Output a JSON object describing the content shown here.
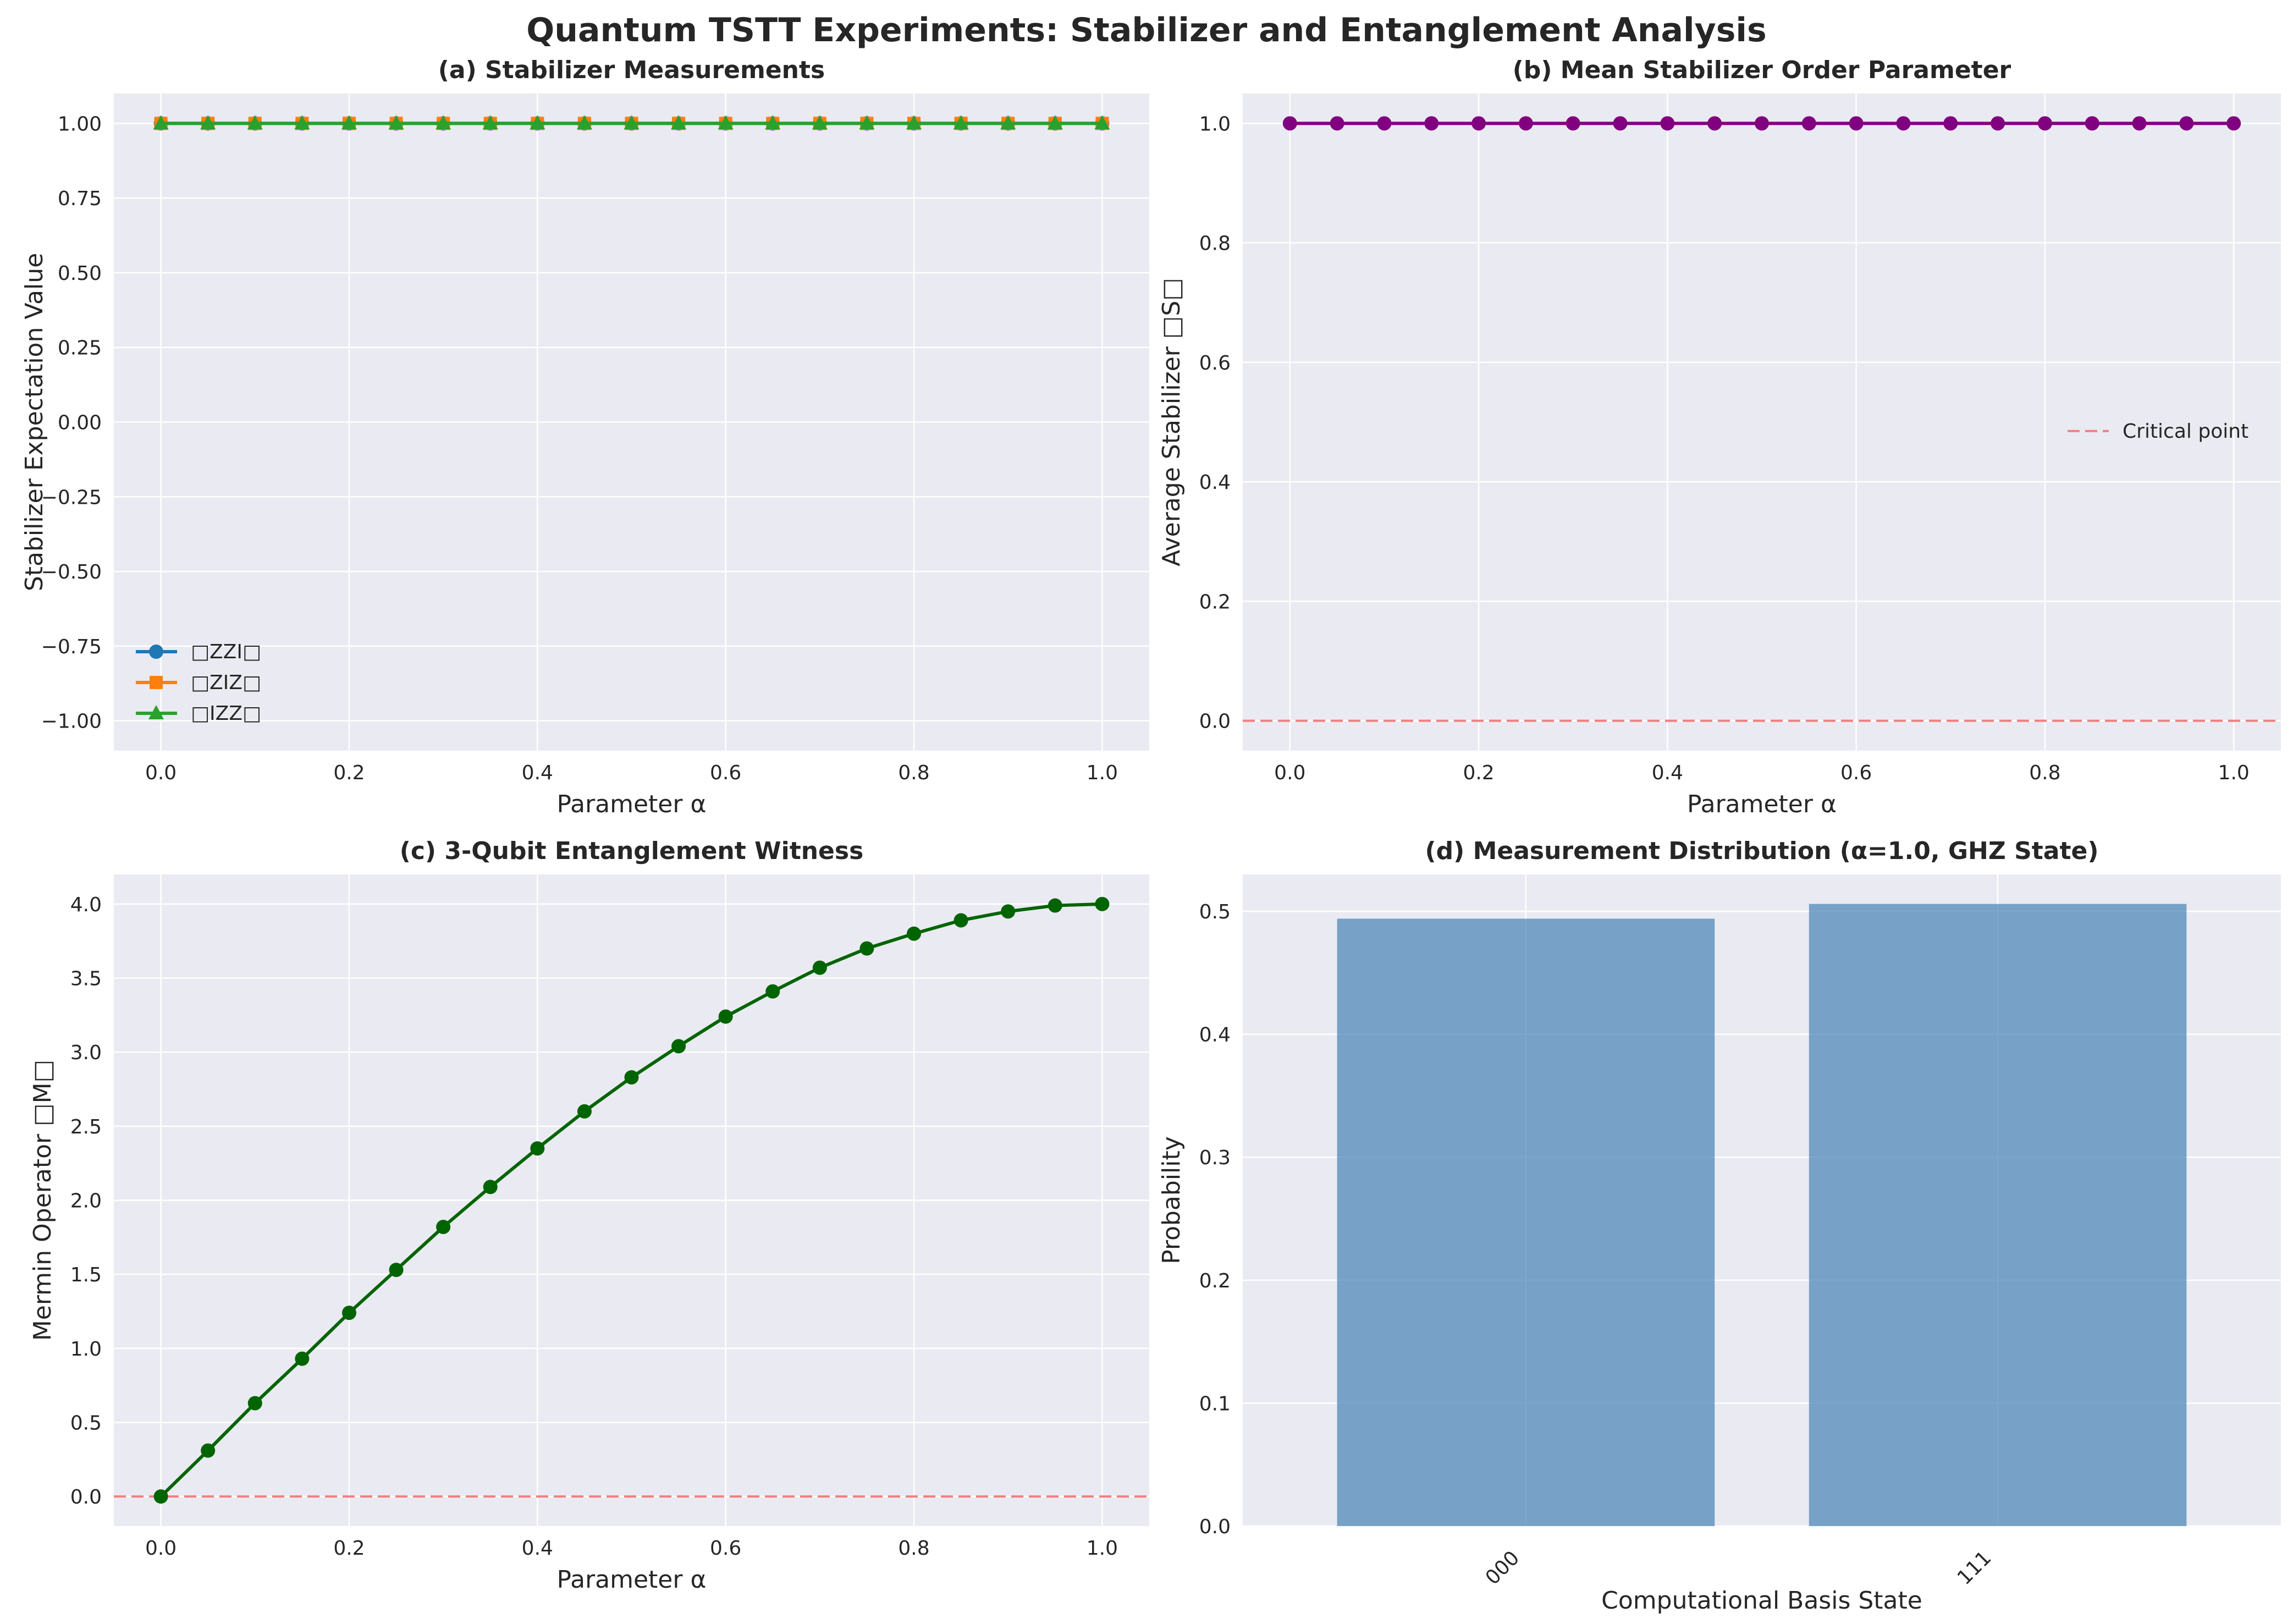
{
  "figure": {
    "title": "Quantum TSTT Experiments: Stabilizer and Entanglement Analysis",
    "background": "#ffffff",
    "axes_background": "#eaeaf2",
    "grid_color": "#ffffff"
  },
  "chart_data": [
    {
      "id": "a",
      "type": "line",
      "title": "(a) Stabilizer Measurements",
      "xlabel": "Parameter α",
      "ylabel": "Stabilizer Expectation Value",
      "xlim": [
        -0.05,
        1.05
      ],
      "ylim": [
        -1.1,
        1.1
      ],
      "xticks": [
        "0.0",
        "0.2",
        "0.4",
        "0.6",
        "0.8",
        "1.0"
      ],
      "yticks": [
        "−1.00",
        "−0.75",
        "−0.50",
        "−0.25",
        "0.00",
        "0.25",
        "0.50",
        "0.75",
        "1.00"
      ],
      "grid": true,
      "legend_position": "lower-left",
      "x": [
        0.0,
        0.05,
        0.1,
        0.15,
        0.2,
        0.25,
        0.3,
        0.35,
        0.4,
        0.45,
        0.5,
        0.55,
        0.6,
        0.65,
        0.7,
        0.75,
        0.8,
        0.85,
        0.9,
        0.95,
        1.0
      ],
      "series": [
        {
          "name": "□ZZI□",
          "color": "#1f77b4",
          "marker": "circle",
          "values": [
            1,
            1,
            1,
            1,
            1,
            1,
            1,
            1,
            1,
            1,
            1,
            1,
            1,
            1,
            1,
            1,
            1,
            1,
            1,
            1,
            1
          ]
        },
        {
          "name": "□ZIZ□",
          "color": "#ff7f0e",
          "marker": "square",
          "values": [
            1,
            1,
            1,
            1,
            1,
            1,
            1,
            1,
            1,
            1,
            1,
            1,
            1,
            1,
            1,
            1,
            1,
            1,
            1,
            1,
            1
          ]
        },
        {
          "name": "□IZZ□",
          "color": "#2ca02c",
          "marker": "triangle",
          "values": [
            1,
            1,
            1,
            1,
            1,
            1,
            1,
            1,
            1,
            1,
            1,
            1,
            1,
            1,
            1,
            1,
            1,
            1,
            1,
            1,
            1
          ]
        }
      ]
    },
    {
      "id": "b",
      "type": "line",
      "title": "(b) Mean Stabilizer Order Parameter",
      "xlabel": "Parameter α",
      "ylabel": "Average Stabilizer □S□",
      "xlim": [
        -0.05,
        1.05
      ],
      "ylim": [
        -0.05,
        1.05
      ],
      "xticks": [
        "0.0",
        "0.2",
        "0.4",
        "0.6",
        "0.8",
        "1.0"
      ],
      "yticks": [
        "0.0",
        "0.2",
        "0.4",
        "0.6",
        "0.8",
        "1.0"
      ],
      "grid": true,
      "legend_position": "center-right",
      "x": [
        0.0,
        0.05,
        0.1,
        0.15,
        0.2,
        0.25,
        0.3,
        0.35,
        0.4,
        0.45,
        0.5,
        0.55,
        0.6,
        0.65,
        0.7,
        0.75,
        0.8,
        0.85,
        0.9,
        0.95,
        1.0
      ],
      "series": [
        {
          "color": "#800080",
          "marker": "circle",
          "values": [
            1,
            1,
            1,
            1,
            1,
            1,
            1,
            1,
            1,
            1,
            1,
            1,
            1,
            1,
            1,
            1,
            1,
            1,
            1,
            1,
            1
          ]
        }
      ],
      "hline": {
        "y": 0,
        "color": "#f08080",
        "label": "Critical point"
      }
    },
    {
      "id": "c",
      "type": "line",
      "title": "(c) 3-Qubit Entanglement Witness",
      "xlabel": "Parameter α",
      "ylabel": "Mermin Operator □M□",
      "xlim": [
        -0.05,
        1.05
      ],
      "ylim": [
        -0.2,
        4.2
      ],
      "xticks": [
        "0.0",
        "0.2",
        "0.4",
        "0.6",
        "0.8",
        "1.0"
      ],
      "yticks": [
        "0.0",
        "0.5",
        "1.0",
        "1.5",
        "2.0",
        "2.5",
        "3.0",
        "3.5",
        "4.0"
      ],
      "grid": true,
      "x": [
        0.0,
        0.05,
        0.1,
        0.15,
        0.2,
        0.25,
        0.3,
        0.35,
        0.4,
        0.45,
        0.5,
        0.55,
        0.6,
        0.65,
        0.7,
        0.75,
        0.8,
        0.85,
        0.9,
        0.95,
        1.0
      ],
      "series": [
        {
          "color": "#006400",
          "marker": "circle",
          "values": [
            0.0,
            0.31,
            0.63,
            0.93,
            1.24,
            1.53,
            1.82,
            2.09,
            2.35,
            2.6,
            2.83,
            3.04,
            3.24,
            3.41,
            3.57,
            3.7,
            3.8,
            3.89,
            3.95,
            3.99,
            4.0
          ]
        }
      ],
      "hline": {
        "y": 0,
        "color": "#f08080"
      }
    },
    {
      "id": "d",
      "type": "bar",
      "title": "(d) Measurement Distribution (α=1.0, GHZ State)",
      "xlabel": "Computational Basis State",
      "ylabel": "Probability",
      "ylim": [
        0,
        0.53
      ],
      "yticks": [
        "0.0",
        "0.1",
        "0.2",
        "0.3",
        "0.4",
        "0.5"
      ],
      "grid": true,
      "color": "#4682b4",
      "categories": [
        "000",
        "111"
      ],
      "values": [
        0.494,
        0.506
      ]
    }
  ]
}
